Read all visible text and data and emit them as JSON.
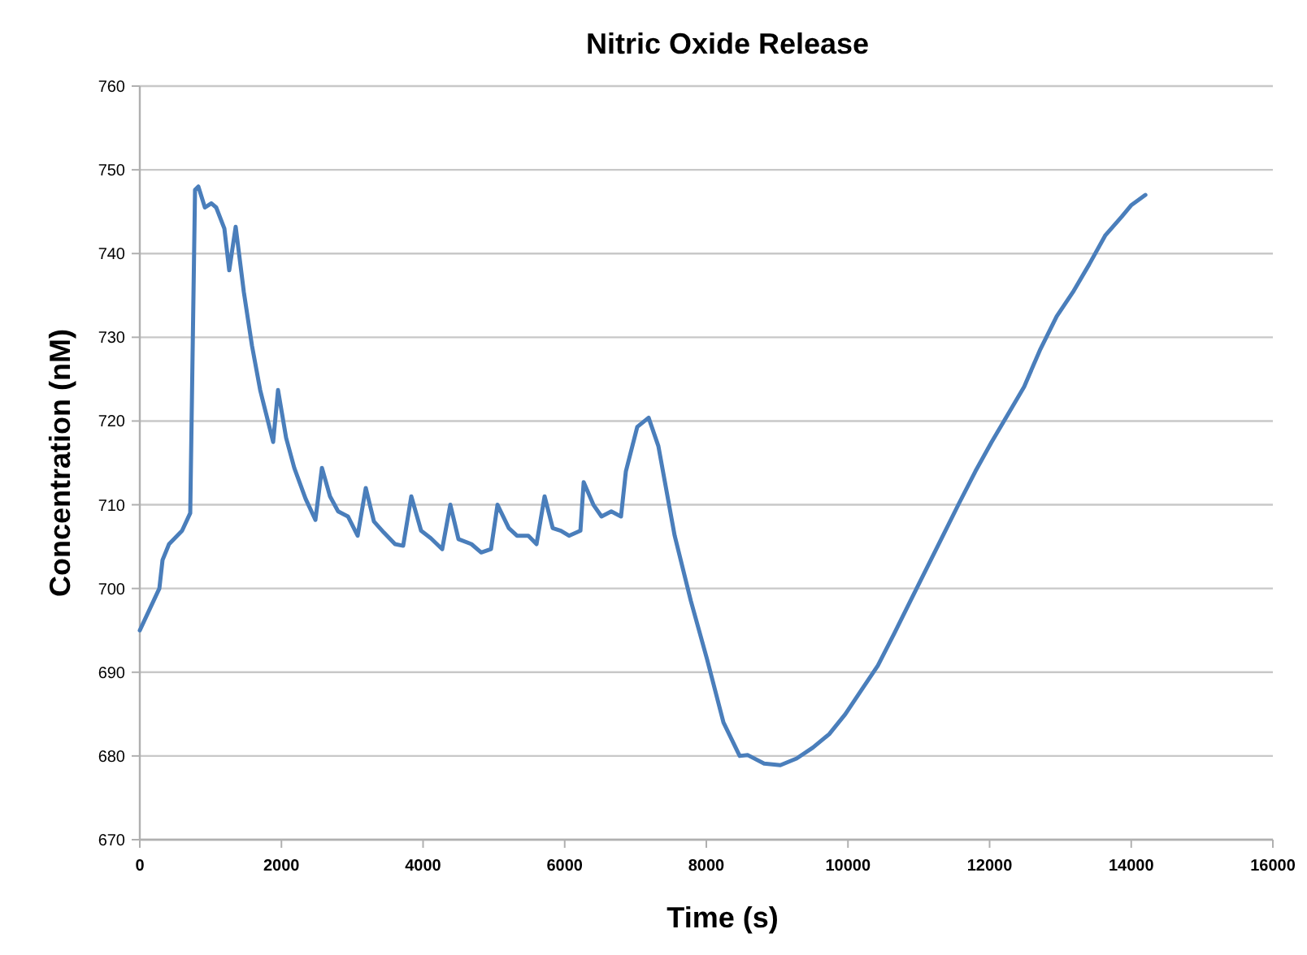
{
  "chart_data": {
    "type": "line",
    "title": "Nitric Oxide Release",
    "xlabel": "Time (s)",
    "ylabel": "Concentration (nM)",
    "xlim": [
      0,
      16000
    ],
    "xticks": [
      0,
      2000,
      4000,
      6000,
      8000,
      10000,
      12000,
      14000,
      16000
    ],
    "ylim": [
      670,
      760
    ],
    "yticks": [
      670,
      680,
      690,
      700,
      710,
      720,
      730,
      740,
      750,
      760
    ],
    "grid": "y",
    "marker": "none",
    "line_style": "solid",
    "x": [
      0,
      276,
      321,
      413,
      597,
      712,
      780,
      827,
      919,
      1010,
      1079,
      1194,
      1263,
      1354,
      1469,
      1584,
      1700,
      1883,
      1952,
      2066,
      2181,
      2342,
      2480,
      2572,
      2686,
      2801,
      2939,
      3076,
      3191,
      3306,
      3444,
      3604,
      3719,
      3834,
      3972,
      4109,
      4270,
      4385,
      4500,
      4683,
      4821,
      4959,
      5051,
      5211,
      5326,
      5487,
      5602,
      5716,
      5831,
      5946,
      6061,
      6222,
      6268,
      6405,
      6520,
      6658,
      6795,
      6864,
      7025,
      7185,
      7323,
      7553,
      7782,
      8012,
      8242,
      8471,
      8586,
      8816,
      9045,
      9275,
      9504,
      9734,
      9963,
      10193,
      10422,
      10652,
      10881,
      11111,
      11341,
      11570,
      11800,
      12029,
      12259,
      12488,
      12718,
      12947,
      13177,
      13406,
      13636,
      13865,
      14003,
      14200
    ],
    "series": [
      {
        "color": "#4a7ebb",
        "values": [
          695,
          700,
          703.4,
          705.3,
          706.9,
          709,
          747.6,
          748,
          745.5,
          746,
          745.5,
          743,
          738,
          743.2,
          735.4,
          729,
          723.7,
          717.5,
          723.7,
          718,
          714.4,
          710.7,
          708.2,
          714.4,
          711,
          709.2,
          708.6,
          706.3,
          712,
          708,
          706.7,
          705.3,
          705.1,
          711,
          706.9,
          706,
          704.7,
          710,
          705.9,
          705.3,
          704.3,
          704.7,
          710,
          707.2,
          706.3,
          706.3,
          705.3,
          711,
          707.2,
          706.9,
          706.3,
          706.9,
          712.7,
          710,
          708.6,
          709.2,
          708.6,
          714,
          719.3,
          720.4,
          717,
          706.3,
          698.5,
          691.5,
          684,
          680,
          680.1,
          679.1,
          678.9,
          679.7,
          681,
          682.6,
          685,
          687.9,
          690.8,
          694.6,
          698.5,
          702.4,
          706.3,
          710.2,
          714,
          717.5,
          720.8,
          724.1,
          728.6,
          732.5,
          735.4,
          738.7,
          742.2,
          744.4,
          745.8,
          747
        ]
      }
    ]
  }
}
